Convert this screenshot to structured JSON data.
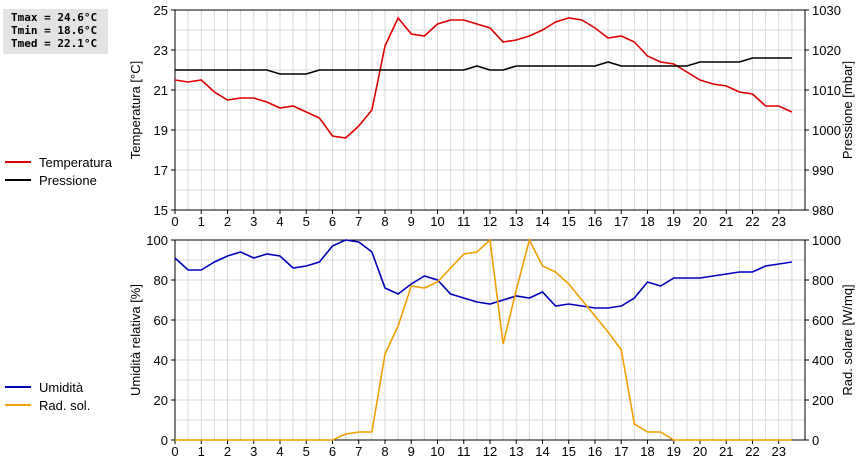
{
  "stats": {
    "tmax": "Tmax = 24.6°C",
    "tmin": "Tmin = 18.6°C",
    "tmed": "Tmed = 22.1°C"
  },
  "chart_data": [
    {
      "type": "line",
      "x_ticks": [
        "0",
        "1",
        "2",
        "3",
        "4",
        "5",
        "6",
        "7",
        "8",
        "9",
        "10",
        "11",
        "12",
        "13",
        "14",
        "15",
        "16",
        "17",
        "18",
        "19",
        "20",
        "21",
        "22",
        "23"
      ],
      "xlim": [
        0,
        24
      ],
      "ylabel_left": "Temperatura [°C]",
      "ylabel_right": "Pressione [mbar]",
      "ylim_left": [
        15,
        25
      ],
      "ylim_right": [
        980,
        1030
      ],
      "yticks_left": [
        "15",
        "17",
        "19",
        "21",
        "23",
        "25"
      ],
      "yticks_right": [
        "980",
        "990",
        "1000",
        "1010",
        "1020",
        "1030"
      ],
      "grid": true,
      "legend_position": "left",
      "series": [
        {
          "name": "Temperatura",
          "axis": "left",
          "color": "#dd0000",
          "x": [
            0,
            0.5,
            1,
            1.5,
            2,
            2.5,
            3,
            3.5,
            4,
            4.5,
            5,
            5.5,
            6,
            6.5,
            7,
            7.5,
            8,
            8.5,
            9,
            9.5,
            10,
            10.5,
            11,
            11.5,
            12,
            12.5,
            13,
            13.5,
            14,
            14.5,
            15,
            15.5,
            16,
            16.5,
            17,
            17.5,
            18,
            18.5,
            19,
            19.5,
            20,
            20.5,
            21,
            21.5,
            22,
            22.5,
            23,
            23.5
          ],
          "values": [
            21.5,
            21.4,
            21.5,
            20.9,
            20.5,
            20.6,
            20.6,
            20.4,
            20.1,
            20.2,
            19.9,
            19.6,
            18.7,
            18.6,
            19.2,
            20.0,
            23.2,
            24.6,
            23.8,
            23.7,
            24.3,
            24.5,
            24.5,
            24.3,
            24.1,
            23.4,
            23.5,
            23.7,
            24.0,
            24.4,
            24.6,
            24.5,
            24.1,
            23.6,
            23.7,
            23.4,
            22.7,
            22.4,
            22.3,
            21.9,
            21.5,
            21.3,
            21.2,
            20.9,
            20.8,
            20.2,
            20.2,
            19.9
          ]
        },
        {
          "name": "Pressione",
          "axis": "right",
          "color": "#000000",
          "x": [
            0,
            0.5,
            1,
            1.5,
            2,
            2.5,
            3,
            3.5,
            4,
            4.5,
            5,
            5.5,
            6,
            6.5,
            7,
            7.5,
            8,
            8.5,
            9,
            9.5,
            10,
            10.5,
            11,
            11.5,
            12,
            12.5,
            13,
            13.5,
            14,
            14.5,
            15,
            15.5,
            16,
            16.5,
            17,
            17.5,
            18,
            18.5,
            19,
            19.5,
            20,
            20.5,
            21,
            21.5,
            22,
            22.5,
            23,
            23.5
          ],
          "values": [
            1015,
            1015,
            1015,
            1015,
            1015,
            1015,
            1015,
            1015,
            1014,
            1014,
            1014,
            1015,
            1015,
            1015,
            1015,
            1015,
            1015,
            1015,
            1015,
            1015,
            1015,
            1015,
            1015,
            1016,
            1015,
            1015,
            1016,
            1016,
            1016,
            1016,
            1016,
            1016,
            1016,
            1017,
            1016,
            1016,
            1016,
            1016,
            1016,
            1016,
            1017,
            1017,
            1017,
            1017,
            1018,
            1018,
            1018,
            1018
          ]
        }
      ]
    },
    {
      "type": "line",
      "x_ticks": [
        "0",
        "1",
        "2",
        "3",
        "4",
        "5",
        "6",
        "7",
        "8",
        "9",
        "10",
        "11",
        "12",
        "13",
        "14",
        "15",
        "16",
        "17",
        "18",
        "19",
        "20",
        "21",
        "22",
        "23"
      ],
      "xlim": [
        0,
        24
      ],
      "ylabel_left": "Umidità relativa [%]",
      "ylabel_right": "Rad. solare [W/mq]",
      "ylim_left": [
        0,
        100
      ],
      "ylim_right": [
        0,
        1000
      ],
      "yticks_left": [
        "0",
        "20",
        "40",
        "60",
        "80",
        "100"
      ],
      "yticks_right": [
        "0",
        "200",
        "400",
        "600",
        "800",
        "1000"
      ],
      "grid": true,
      "legend_position": "left",
      "series": [
        {
          "name": "Umidità",
          "axis": "left",
          "color": "#0000bb",
          "x": [
            0,
            0.5,
            1,
            1.5,
            2,
            2.5,
            3,
            3.5,
            4,
            4.5,
            5,
            5.5,
            6,
            6.5,
            7,
            7.5,
            8,
            8.5,
            9,
            9.5,
            10,
            10.5,
            11,
            11.5,
            12,
            12.5,
            13,
            13.5,
            14,
            14.5,
            15,
            15.5,
            16,
            16.5,
            17,
            17.5,
            18,
            18.5,
            19,
            19.5,
            20,
            20.5,
            21,
            21.5,
            22,
            22.5,
            23,
            23.5
          ],
          "values": [
            91,
            85,
            85,
            89,
            92,
            94,
            91,
            93,
            92,
            86,
            87,
            89,
            97,
            100,
            99,
            94,
            76,
            73,
            78,
            82,
            80,
            73,
            71,
            69,
            68,
            70,
            72,
            71,
            74,
            67,
            68,
            67,
            66,
            66,
            67,
            71,
            79,
            77,
            81,
            81,
            81,
            82,
            83,
            84,
            84,
            87,
            88,
            89
          ]
        },
        {
          "name": "Rad. sol.",
          "axis": "right",
          "color": "#f0a000",
          "x": [
            0,
            0.5,
            1,
            1.5,
            2,
            2.5,
            3,
            3.5,
            4,
            4.5,
            5,
            5.5,
            6,
            6.5,
            7,
            7.5,
            8,
            8.5,
            9,
            9.5,
            10,
            10.5,
            11,
            11.5,
            12,
            12.5,
            13,
            13.5,
            14,
            14.5,
            15,
            15.5,
            16,
            16.5,
            17,
            17.5,
            18,
            18.5,
            19,
            19.5,
            20,
            20.5,
            21,
            21.5,
            22,
            22.5,
            23,
            23.5
          ],
          "values": [
            0,
            0,
            0,
            0,
            0,
            0,
            0,
            0,
            0,
            0,
            0,
            0,
            0,
            30,
            40,
            40,
            430,
            570,
            770,
            760,
            790,
            860,
            930,
            940,
            1040,
            480,
            750,
            1030,
            870,
            840,
            780,
            700,
            620,
            540,
            450,
            80,
            40,
            40,
            0,
            0,
            0,
            0,
            0,
            0,
            0,
            0,
            0,
            0
          ]
        }
      ]
    }
  ]
}
